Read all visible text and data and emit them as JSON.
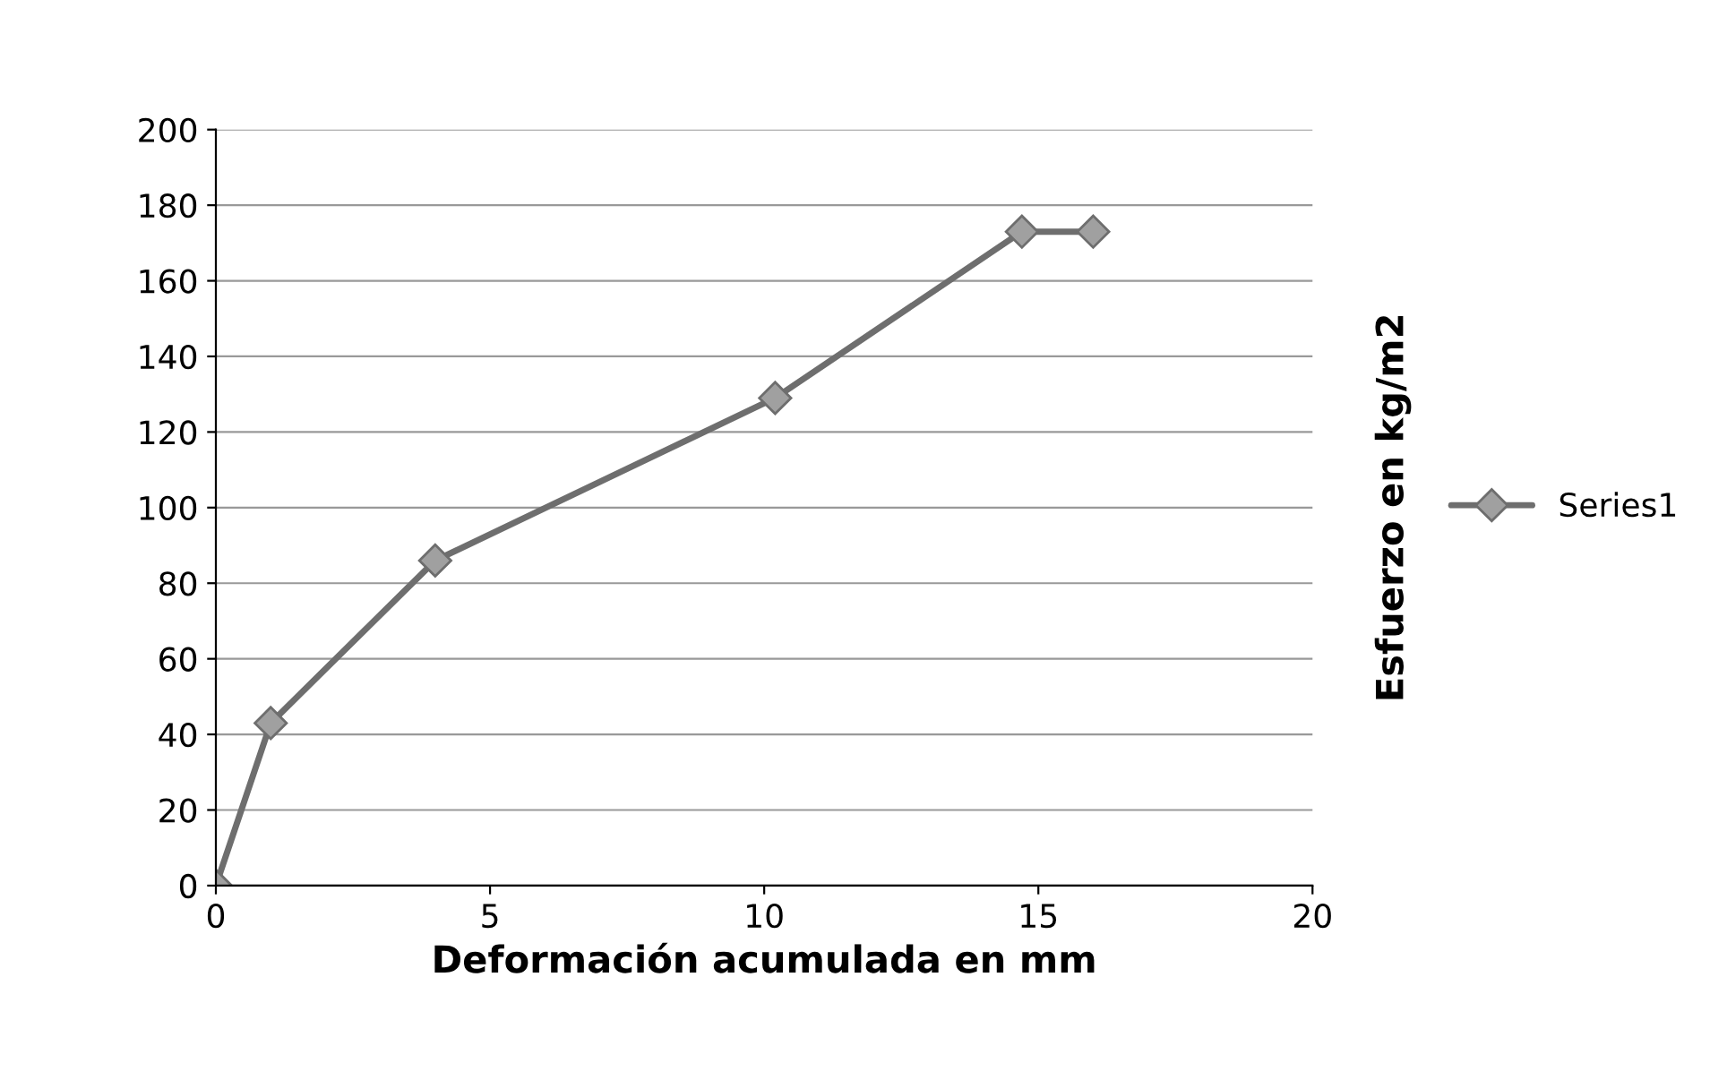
{
  "chart_data": {
    "type": "line",
    "xlabel": "Deformación acumulada en mm",
    "ylabel": "Esfuerzo en kg/m2",
    "x": [
      0,
      1,
      4,
      10.2,
      14.7,
      16
    ],
    "series": [
      {
        "name": "Series1",
        "color": "#6e6e6e",
        "values": [
          0,
          43,
          86,
          129,
          173,
          173
        ]
      }
    ],
    "xlim": [
      0,
      20
    ],
    "xticks": [
      0,
      5,
      10,
      15,
      20
    ],
    "ylim": [
      0,
      200
    ],
    "yticks": [
      0,
      20,
      40,
      60,
      80,
      100,
      120,
      140,
      160,
      180,
      200
    ],
    "grid": "y",
    "legend": "right",
    "marker": "diamond",
    "line_style": "solid"
  }
}
